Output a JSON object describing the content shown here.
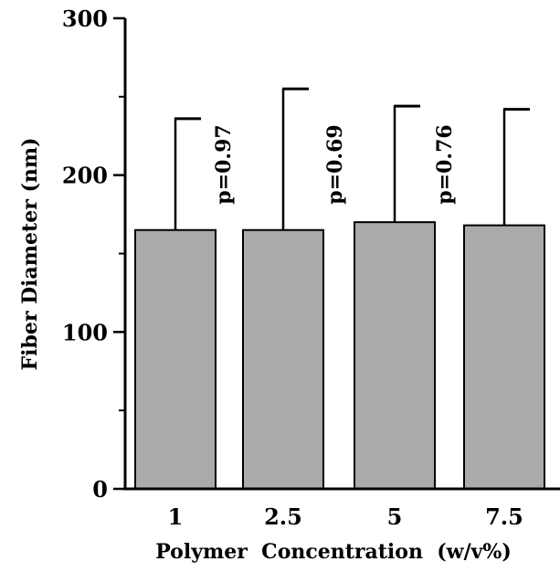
{
  "chart_data": {
    "type": "bar",
    "title": "",
    "xlabel": "Polymer  Concentration  (w/v%)",
    "ylabel": "Fiber  Diameter  (nm)",
    "categories": [
      "1",
      "2.5",
      "5",
      "7.5"
    ],
    "values": [
      165,
      165,
      170,
      168
    ],
    "error_upper": [
      236,
      255,
      244,
      242
    ],
    "ylim": [
      0,
      300
    ],
    "yticks": [
      0,
      100,
      200,
      300
    ],
    "grid": false,
    "annotations": [
      "p=0.97",
      "p=0.69",
      "p=0.76"
    ],
    "colors": {
      "bar": "#aaaaaa",
      "axis": "#000000"
    }
  }
}
